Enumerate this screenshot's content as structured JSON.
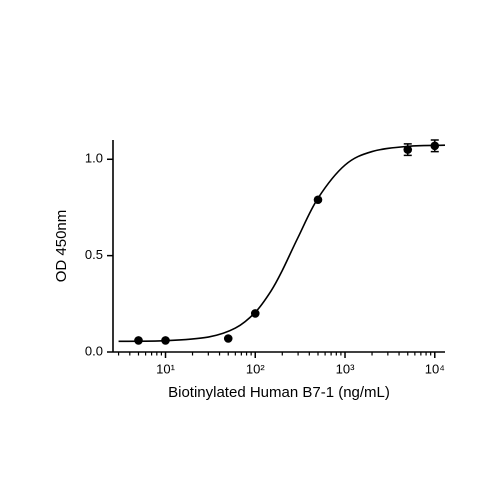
{
  "chart_data": {
    "type": "scatter",
    "xlabel": "Biotinylated Human B7-1 (ng/mL)",
    "ylabel": "OD 450nm",
    "x": [
      5,
      10,
      50,
      100,
      500,
      5000,
      10000
    ],
    "values": [
      0.06,
      0.06,
      0.07,
      0.2,
      0.79,
      1.05,
      1.07
    ],
    "errors": [
      null,
      null,
      null,
      null,
      null,
      0.03,
      0.03
    ],
    "curve": {
      "x": [
        3,
        10,
        30,
        60,
        100,
        150,
        200,
        300,
        500,
        1000,
        2000,
        5000,
        13000
      ],
      "values": [
        0.0555,
        0.0585,
        0.0774,
        0.124,
        0.206,
        0.317,
        0.423,
        0.595,
        0.798,
        0.97,
        1.04,
        1.067,
        1.073
      ]
    },
    "color": "#000000",
    "xscale": "log",
    "xlim": [
      2.6,
      13000
    ],
    "xticks": [
      {
        "value": 10,
        "label": "10¹"
      },
      {
        "value": 100,
        "label": "10²"
      },
      {
        "value": 1000,
        "label": "10³"
      },
      {
        "value": 10000,
        "label": "10⁴"
      }
    ],
    "ylim": [
      0,
      1.1
    ],
    "yticks": [
      {
        "value": 0,
        "label": "0.0"
      },
      {
        "value": 0.5,
        "label": "0.5"
      },
      {
        "value": 1,
        "label": "1.0"
      }
    ],
    "grid": false
  }
}
